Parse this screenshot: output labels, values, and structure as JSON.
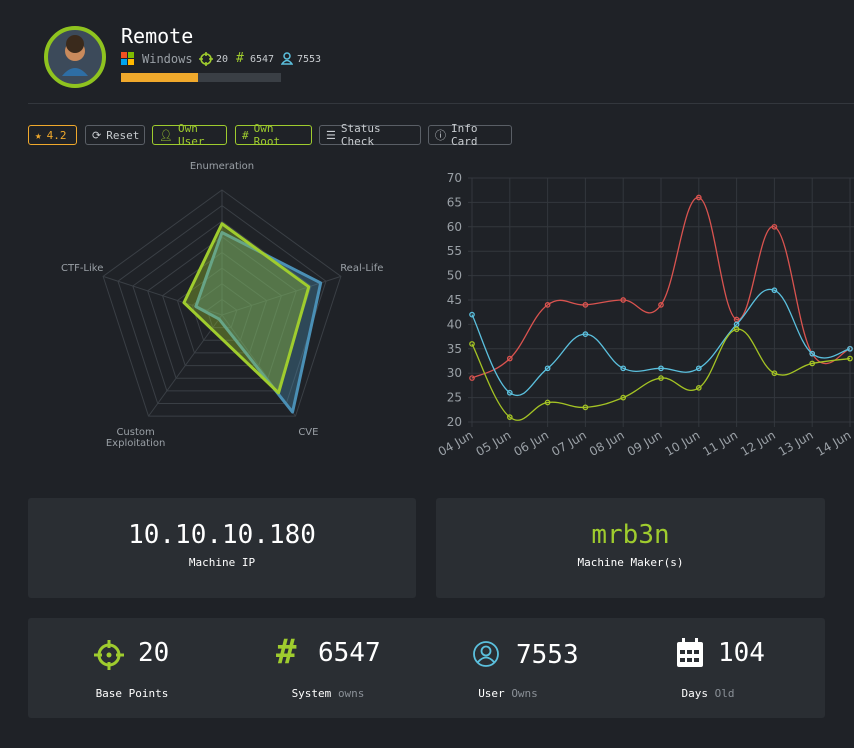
{
  "header": {
    "name": "Remote",
    "os": "Windows",
    "points": "20",
    "system_owns": "6547",
    "user_owns": "7553",
    "progress": 48
  },
  "buttons": {
    "rating": "4.2",
    "reset": "Reset",
    "own_user": "Own User",
    "own_root": "Own Root",
    "status_check": "Status Check",
    "info_card": "Info Card"
  },
  "chart_data": [
    {
      "type": "radar",
      "categories": [
        "Enumeration",
        "Real-Life",
        "CVE",
        "Custom Exploitation",
        "CTF-Like"
      ],
      "rlim": [
        0,
        10
      ],
      "series": [
        {
          "color": "#4a8fb5",
          "values": [
            6.6,
            8.3,
            9.6,
            0.4,
            2.2
          ]
        },
        {
          "color": "#9fcc2e",
          "values": [
            7.3,
            7.3,
            7.7,
            1.4,
            3.2
          ]
        }
      ]
    },
    {
      "type": "line",
      "categories": [
        "04 Jun",
        "05 Jun",
        "06 Jun",
        "07 Jun",
        "08 Jun",
        "09 Jun",
        "10 Jun",
        "11 Jun",
        "12 Jun",
        "13 Jun",
        "14 Jun"
      ],
      "ylim": [
        20,
        70
      ],
      "yticks": [
        20,
        25,
        30,
        35,
        40,
        45,
        50,
        55,
        60,
        65,
        70
      ],
      "grid": true,
      "series": [
        {
          "color": "#d9534f",
          "values": [
            29,
            33,
            44,
            44,
            45,
            44,
            66,
            41,
            60,
            34,
            35
          ]
        },
        {
          "color": "#5bc0de",
          "values": [
            42,
            26,
            31,
            38,
            31,
            31,
            31,
            40,
            47,
            34,
            35
          ]
        },
        {
          "color": "#a4c324",
          "values": [
            36,
            21,
            24,
            23,
            25,
            29,
            27,
            39,
            30,
            32,
            33
          ]
        }
      ]
    }
  ],
  "machine": {
    "ip": "10.10.10.180",
    "ip_label": "Machine IP",
    "maker": "mrb3n",
    "maker_label": "Machine Maker(s)"
  },
  "stats": [
    {
      "value": "20",
      "label": "Base Points"
    },
    {
      "value": "6547",
      "label": "System",
      "sub": "owns"
    },
    {
      "value": "7553",
      "label": "User",
      "sub": "Owns"
    },
    {
      "value": "104",
      "label": "Days",
      "sub": "Old"
    }
  ]
}
